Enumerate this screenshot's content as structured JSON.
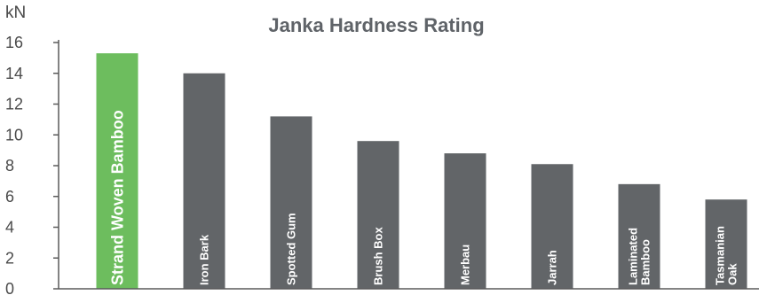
{
  "chart_data": {
    "type": "bar",
    "title": "Janka Hardness Rating",
    "ylabel": "kN",
    "xlabel": "",
    "ylim": [
      0,
      16
    ],
    "yticks": [
      0,
      2,
      4,
      6,
      8,
      10,
      12,
      14,
      16
    ],
    "grid": false,
    "categories": [
      "Strand Woven Bamboo",
      "Iron Bark",
      "Spotted Gum",
      "Brush Box",
      "Merbau",
      "Jarrah",
      "Laminated Bamboo",
      "Tasmanian Oak"
    ],
    "label_lines": [
      [
        "Strand Woven Bamboo"
      ],
      [
        "Iron Bark"
      ],
      [
        "Spotted Gum"
      ],
      [
        "Brush Box"
      ],
      [
        "Merbau"
      ],
      [
        "Jarrah"
      ],
      [
        "Laminated",
        "Bamboo"
      ],
      [
        "Tasmanian",
        "Oak"
      ]
    ],
    "values": [
      15.3,
      14.0,
      11.2,
      9.6,
      8.8,
      8.1,
      6.8,
      5.8
    ],
    "colors": {
      "highlight": "#6dbd5e",
      "default": "#626568",
      "axis": "#5a5a5a",
      "label": "#ffffff"
    },
    "highlight_index": 0
  }
}
